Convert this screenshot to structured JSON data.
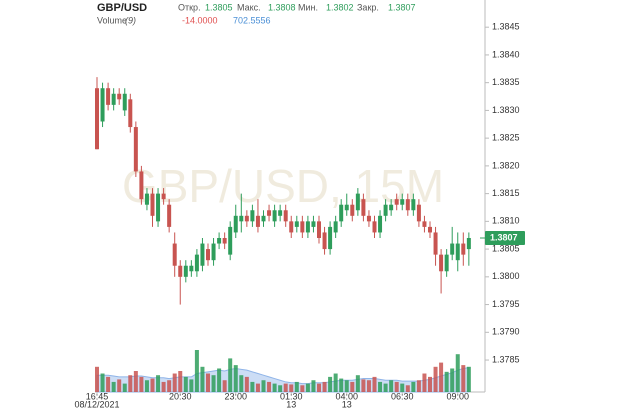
{
  "chart_data": {
    "type": "candlestick",
    "title": "GBP/USD",
    "watermark": "GBP/USD, 15M",
    "ohlc": [
      {
        "label": "Откр.",
        "value": 1.3805
      },
      {
        "label": "Макс.",
        "value": 1.3808
      },
      {
        "label": "Мин.",
        "value": 1.3802
      },
      {
        "label": "Закр.",
        "value": 1.3807
      }
    ],
    "categories": [
      "16:45",
      null,
      null,
      null,
      null,
      null,
      null,
      null,
      null,
      null,
      null,
      null,
      null,
      null,
      null,
      "20:30",
      null,
      null,
      null,
      null,
      null,
      null,
      null,
      null,
      null,
      "23:00",
      null,
      null,
      null,
      null,
      null,
      null,
      null,
      null,
      null,
      "01:30",
      null,
      null,
      null,
      null,
      null,
      null,
      null,
      null,
      null,
      "04:00",
      null,
      null,
      null,
      null,
      null,
      null,
      null,
      null,
      null,
      "06:30",
      null,
      null,
      null,
      null,
      null,
      null,
      null,
      null,
      null,
      "09:00",
      null,
      null
    ],
    "date_labels": [
      "08/12/2021",
      null,
      null,
      null,
      null,
      null,
      null,
      null,
      null,
      null,
      null,
      null,
      null,
      null,
      null,
      null,
      null,
      null,
      null,
      null,
      null,
      null,
      null,
      null,
      null,
      null,
      null,
      null,
      null,
      null,
      null,
      null,
      null,
      null,
      null,
      "13",
      null,
      null,
      null,
      null,
      null,
      null,
      null,
      null,
      null,
      "13",
      null,
      null,
      null,
      null,
      null,
      null,
      null,
      null,
      null,
      null,
      null,
      null,
      null,
      null,
      null,
      null,
      null,
      null,
      null,
      null,
      null,
      null
    ],
    "open": [
      1.3834,
      1.3828,
      1.3834,
      1.3831,
      1.3833,
      1.383,
      1.3832,
      1.3827,
      1.3819,
      1.3813,
      1.3815,
      1.381,
      1.3815,
      1.3813,
      1.3806,
      1.3802,
      1.38,
      1.3801,
      1.3801,
      1.3802,
      1.3805,
      1.3803,
      1.3806,
      1.3807,
      1.3804,
      1.3808,
      1.381,
      1.3811,
      1.381,
      1.3811,
      1.381,
      1.3812,
      1.381,
      1.3811,
      1.3812,
      1.381,
      1.3809,
      1.381,
      1.3808,
      1.3809,
      1.381,
      1.3808,
      1.3805,
      1.3808,
      1.381,
      1.3812,
      1.3813,
      1.3812,
      1.3814,
      1.3811,
      1.381,
      1.3808,
      1.3811,
      1.3812,
      1.3814,
      1.3813,
      1.3814,
      1.3812,
      1.3813,
      1.381,
      1.3809,
      1.3808,
      1.3804,
      1.3801,
      1.3804,
      1.3803,
      1.3806,
      1.3805
    ],
    "high": [
      1.3836,
      1.3835,
      1.3835,
      1.3834,
      1.3834,
      1.3834,
      1.3833,
      1.3828,
      1.382,
      1.3816,
      1.3816,
      1.3816,
      1.3816,
      1.3814,
      1.3808,
      1.3803,
      1.3803,
      1.3803,
      1.3805,
      1.3807,
      1.3806,
      1.3807,
      1.3808,
      1.3808,
      1.381,
      1.3813,
      1.3815,
      1.3812,
      1.3813,
      1.3814,
      1.3812,
      1.3813,
      1.3813,
      1.3813,
      1.3813,
      1.3811,
      1.3811,
      1.3811,
      1.3811,
      1.3811,
      1.3811,
      1.3809,
      1.381,
      1.3811,
      1.3814,
      1.3815,
      1.3814,
      1.3816,
      1.3815,
      1.3812,
      1.3811,
      1.3812,
      1.3814,
      1.3814,
      1.3815,
      1.3815,
      1.3815,
      1.3815,
      1.3814,
      1.3811,
      1.381,
      1.3809,
      1.3805,
      1.3805,
      1.3809,
      1.3808,
      1.3808,
      1.3808
    ],
    "low": [
      1.3823,
      1.3827,
      1.383,
      1.383,
      1.3831,
      1.3829,
      1.3826,
      1.3818,
      1.3813,
      1.3812,
      1.3809,
      1.3809,
      1.3813,
      1.3808,
      1.38,
      1.3795,
      1.3799,
      1.38,
      1.38,
      1.3801,
      1.3802,
      1.3802,
      1.3805,
      1.3805,
      1.3803,
      1.3807,
      1.3808,
      1.3809,
      1.3809,
      1.3808,
      1.3809,
      1.381,
      1.3809,
      1.381,
      1.3809,
      1.3807,
      1.3808,
      1.3807,
      1.3807,
      1.3808,
      1.3806,
      1.3804,
      1.3804,
      1.3807,
      1.3809,
      1.3811,
      1.381,
      1.3811,
      1.381,
      1.3809,
      1.3807,
      1.3807,
      1.381,
      1.3811,
      1.3812,
      1.3812,
      1.3811,
      1.3811,
      1.3809,
      1.3808,
      1.3807,
      1.3802,
      1.3797,
      1.38,
      1.3803,
      1.3801,
      1.3802,
      1.3802
    ],
    "close": [
      1.3823,
      1.3834,
      1.3831,
      1.3833,
      1.3832,
      1.3833,
      1.3827,
      1.3819,
      1.3814,
      1.3815,
      1.3811,
      1.3815,
      1.3814,
      1.3809,
      1.3802,
      1.38,
      1.3802,
      1.3802,
      1.3804,
      1.3806,
      1.3803,
      1.3806,
      1.3807,
      1.3806,
      1.3809,
      1.3811,
      1.3811,
      1.381,
      1.3812,
      1.3809,
      1.3811,
      1.3811,
      1.3812,
      1.3812,
      1.381,
      1.3808,
      1.381,
      1.3808,
      1.381,
      1.381,
      1.3807,
      1.3805,
      1.3809,
      1.381,
      1.3813,
      1.3813,
      1.3811,
      1.3815,
      1.3811,
      1.381,
      1.3808,
      1.3811,
      1.3813,
      1.3813,
      1.3813,
      1.3814,
      1.3812,
      1.3814,
      1.381,
      1.3809,
      1.3808,
      1.3804,
      1.3801,
      1.3804,
      1.3806,
      1.3806,
      1.3804,
      1.3807
    ],
    "up_color": "#2e9d5b",
    "down_color": "#c85450",
    "ylim": [
      1.37805,
      1.38481
    ],
    "yticks": [
      1.3785,
      {
        "value": 1.379,
        "label": "1.3790"
      },
      1.3795,
      {
        "value": 1.38,
        "label": "1.3800"
      },
      1.3805,
      {
        "value": 1.381,
        "label": "1.3810"
      },
      1.3815,
      {
        "value": 1.382,
        "label": "1.3820"
      },
      1.3825,
      {
        "value": 1.383,
        "label": "1.3830"
      },
      1.3835,
      {
        "value": 1.384,
        "label": "1.3840"
      },
      1.3845
    ],
    "last_price": 1.3807,
    "volume": {
      "name": "Volume",
      "param": "(9)",
      "readings": [
        "-14.0000",
        "702.5556"
      ],
      "ylim": [
        0,
        100
      ],
      "ma_color": "#8fb4e8",
      "values": [
        30,
        22,
        18,
        12,
        15,
        10,
        20,
        25,
        18,
        14,
        16,
        20,
        12,
        14,
        22,
        25,
        18,
        15,
        50,
        30,
        22,
        20,
        28,
        14,
        40,
        32,
        20,
        18,
        12,
        10,
        14,
        12,
        10,
        8,
        10,
        9,
        12,
        8,
        10,
        14,
        10,
        12,
        18,
        22,
        16,
        14,
        12,
        20,
        15,
        14,
        18,
        12,
        10,
        14,
        12,
        10,
        8,
        12,
        14,
        22,
        18,
        30,
        35,
        24,
        28,
        45,
        32,
        30
      ],
      "ma": [
        20,
        20,
        20,
        19,
        18,
        18,
        18,
        19,
        19,
        18,
        17,
        17,
        17,
        16,
        17,
        18,
        18,
        18,
        22,
        23,
        24,
        25,
        26,
        25,
        27,
        28,
        27,
        26,
        24,
        22,
        20,
        18,
        16,
        14,
        12,
        11,
        11,
        10,
        10,
        11,
        11,
        11,
        12,
        13,
        14,
        14,
        14,
        15,
        16,
        16,
        16,
        15,
        14,
        14,
        14,
        13,
        13,
        13,
        13,
        14,
        15,
        17,
        19,
        21,
        23,
        26,
        28,
        29
      ]
    }
  }
}
